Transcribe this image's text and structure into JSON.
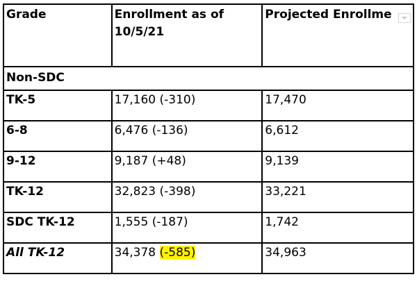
{
  "table": {
    "headers": [
      "Grade",
      "Enrollment as of 10/5/21",
      "Projected Enrollme"
    ],
    "section_label": "Non-SDC",
    "rows": [
      {
        "grade": "TK-5",
        "enrollment": "17,160 (-310)",
        "projected": "17,470"
      },
      {
        "grade": "6-8",
        "enrollment": "6,476 (-136)",
        "projected": "6,612"
      },
      {
        "grade": "9-12",
        "enrollment": "9,187 (+48)",
        "projected": "9,139"
      },
      {
        "grade": "TK-12",
        "enrollment": "32,823 (-398)",
        "projected": "33,221"
      },
      {
        "grade": "SDC TK-12",
        "enrollment": "1,555 (-187)",
        "projected": "1,742"
      },
      {
        "grade": "All TK-12",
        "enrollment_value": "34,378",
        "enrollment_change": "(-585)",
        "projected": "34,963"
      }
    ],
    "highlight_color": "#fff200"
  }
}
